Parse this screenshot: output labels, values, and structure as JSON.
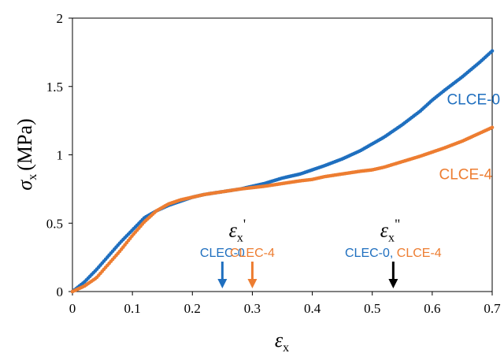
{
  "chart_data": {
    "type": "scatter",
    "xlabel": {
      "symbol": "ε",
      "subscript": "x"
    },
    "ylabel": {
      "symbol": "σ",
      "subscript": "x",
      "unit": "(MPa)"
    },
    "xlim": [
      0,
      0.7
    ],
    "ylim": [
      0,
      2
    ],
    "x_ticks": [
      "0",
      "0.1",
      "0.2",
      "0.3",
      "0.4",
      "0.5",
      "0.6",
      "0.7"
    ],
    "y_ticks": [
      "0",
      "0.5",
      "1",
      "1.5",
      "2"
    ],
    "grid": false,
    "series": [
      {
        "name": "CLCE-0",
        "color": "#1f6fbf",
        "points": [
          [
            0,
            0
          ],
          [
            0.02,
            0.07
          ],
          [
            0.04,
            0.16
          ],
          [
            0.06,
            0.26
          ],
          [
            0.08,
            0.36
          ],
          [
            0.1,
            0.45
          ],
          [
            0.12,
            0.54
          ],
          [
            0.14,
            0.59
          ],
          [
            0.16,
            0.63
          ],
          [
            0.18,
            0.66
          ],
          [
            0.2,
            0.69
          ],
          [
            0.22,
            0.71
          ],
          [
            0.25,
            0.73
          ],
          [
            0.28,
            0.75
          ],
          [
            0.3,
            0.77
          ],
          [
            0.32,
            0.79
          ],
          [
            0.35,
            0.83
          ],
          [
            0.38,
            0.86
          ],
          [
            0.4,
            0.89
          ],
          [
            0.42,
            0.92
          ],
          [
            0.45,
            0.97
          ],
          [
            0.48,
            1.03
          ],
          [
            0.5,
            1.08
          ],
          [
            0.52,
            1.13
          ],
          [
            0.55,
            1.22
          ],
          [
            0.58,
            1.32
          ],
          [
            0.6,
            1.4
          ],
          [
            0.62,
            1.47
          ],
          [
            0.65,
            1.57
          ],
          [
            0.68,
            1.68
          ],
          [
            0.7,
            1.76
          ]
        ]
      },
      {
        "name": "CLCE-4",
        "color": "#ed7d31",
        "points": [
          [
            0,
            0
          ],
          [
            0.02,
            0.04
          ],
          [
            0.04,
            0.1
          ],
          [
            0.06,
            0.2
          ],
          [
            0.08,
            0.3
          ],
          [
            0.1,
            0.41
          ],
          [
            0.12,
            0.51
          ],
          [
            0.14,
            0.59
          ],
          [
            0.16,
            0.64
          ],
          [
            0.18,
            0.67
          ],
          [
            0.2,
            0.69
          ],
          [
            0.22,
            0.71
          ],
          [
            0.25,
            0.73
          ],
          [
            0.28,
            0.75
          ],
          [
            0.3,
            0.76
          ],
          [
            0.32,
            0.77
          ],
          [
            0.35,
            0.79
          ],
          [
            0.38,
            0.81
          ],
          [
            0.4,
            0.82
          ],
          [
            0.42,
            0.84
          ],
          [
            0.45,
            0.86
          ],
          [
            0.48,
            0.88
          ],
          [
            0.5,
            0.89
          ],
          [
            0.52,
            0.91
          ],
          [
            0.55,
            0.95
          ],
          [
            0.58,
            0.99
          ],
          [
            0.6,
            1.02
          ],
          [
            0.62,
            1.05
          ],
          [
            0.65,
            1.1
          ],
          [
            0.68,
            1.16
          ],
          [
            0.7,
            1.2
          ]
        ]
      }
    ],
    "annotations": [
      {
        "type": "symbol",
        "symbol": "ε",
        "subscript": "x",
        "prime": "'",
        "x": 0.275,
        "y": 0.4
      },
      {
        "type": "symbol",
        "symbol": "ε",
        "subscript": "x",
        "prime": "\"",
        "x": 0.53,
        "y": 0.4
      },
      {
        "type": "arrow",
        "x": 0.25,
        "color": "#1f6fbf",
        "label": "CLEC-0"
      },
      {
        "type": "arrow",
        "x": 0.3,
        "color": "#ed7d31",
        "label": "CLEC-4"
      },
      {
        "type": "arrow",
        "x": 0.535,
        "color": "#000000",
        "label_parts": [
          {
            "text": "CLEC-0, ",
            "color": "#1f6fbf"
          },
          {
            "text": "CLCE-4",
            "color": "#ed7d31"
          }
        ]
      }
    ]
  }
}
